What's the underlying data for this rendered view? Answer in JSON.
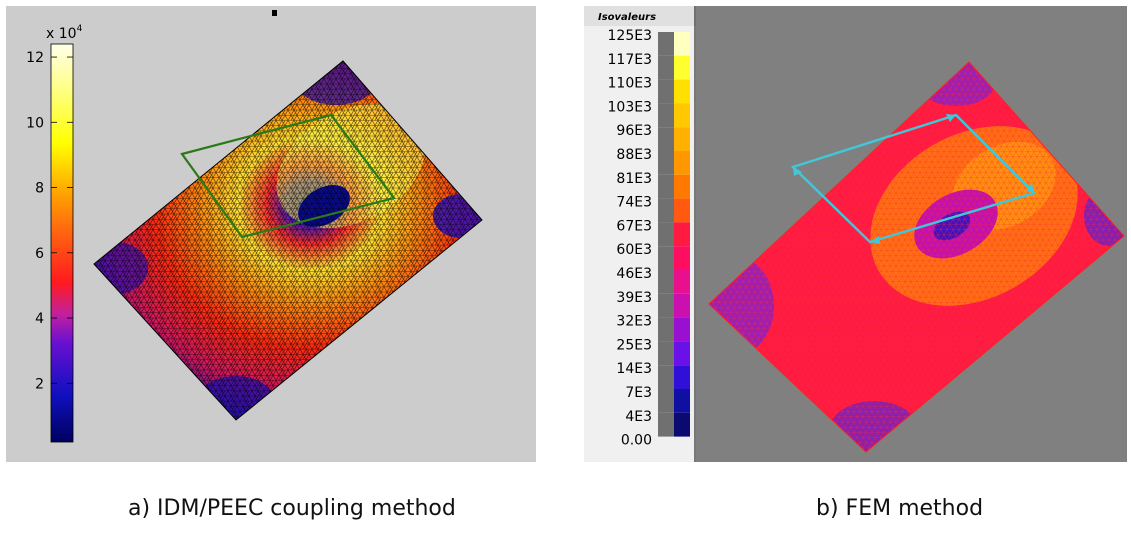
{
  "figure_a": {
    "caption": "a) IDM/PEEC coupling method",
    "colorbar": {
      "multiplier_base": "x 10",
      "multiplier_exp": "4",
      "ticks": [
        "12",
        "10",
        "8",
        "6",
        "4",
        "2"
      ],
      "tick_values": [
        12,
        10,
        8,
        6,
        4,
        2
      ],
      "range": [
        0.2,
        12.4
      ]
    },
    "colors": {
      "background": "#cccccc",
      "mesh_line": "#000000",
      "coil": "#2a7a1a"
    }
  },
  "figure_b": {
    "caption": "b) FEM method",
    "legend_title": "Isovaleurs",
    "legend_values": [
      "125E3",
      "117E3",
      "110E3",
      "103E3",
      "96E3",
      "88E3",
      "81E3",
      "74E3",
      "67E3",
      "60E3",
      "46E3",
      "39E3",
      "32E3",
      "25E3",
      "14E3",
      "7E3",
      "4E3",
      "0.00"
    ],
    "legend_colors": [
      "#ffffc0",
      "#ffff30",
      "#ffe000",
      "#ffc800",
      "#ffb000",
      "#ff9800",
      "#ff7800",
      "#ff5a10",
      "#ff1a40",
      "#ff0d60",
      "#e8108c",
      "#cc10b0",
      "#9a10d0",
      "#6a10e8",
      "#3010d8",
      "#1010a0",
      "#0a0a70"
    ],
    "colors": {
      "background": "#808080",
      "mesh_line": "#ff2020",
      "coil": "#40c8d8"
    }
  }
}
